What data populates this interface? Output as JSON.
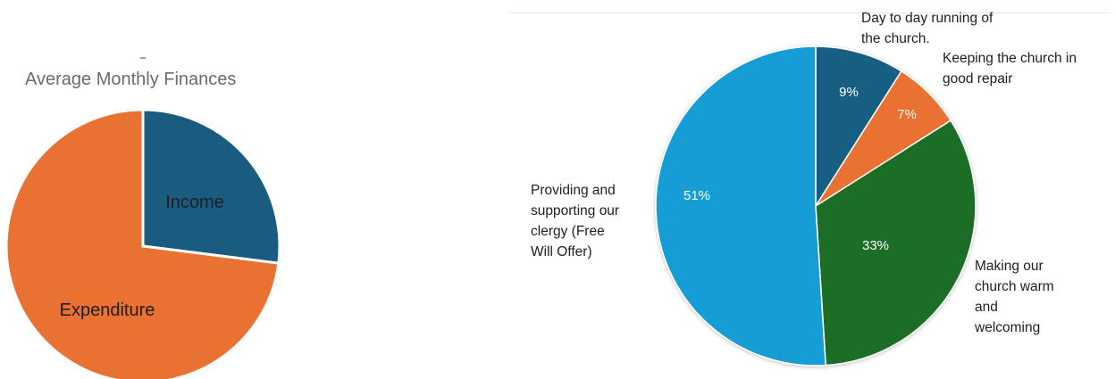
{
  "chart_data": [
    {
      "type": "pie",
      "title": "Average Monthly Finances",
      "categories": [
        "Income",
        "Expenditure"
      ],
      "values": [
        27,
        73
      ],
      "colors": [
        "#1a5c80",
        "#e97132"
      ],
      "labels_inside": true
    },
    {
      "type": "pie",
      "title": "",
      "categories": [
        "Day to day running of the church.",
        "Keeping the church in good repair",
        "Making our church warm and welcoming",
        "Providing and supporting our clergy (Free Will Offer)"
      ],
      "label_lines": [
        [
          "Day to day running of",
          "the church."
        ],
        [
          "Keeping the church in",
          "good repair"
        ],
        [
          "Making our",
          "church warm",
          "and",
          "welcoming"
        ],
        [
          "Providing and",
          "supporting our",
          "clergy (Free",
          "Will Offer)"
        ]
      ],
      "values": [
        9,
        7,
        33,
        51
      ],
      "data_labels": [
        "9%",
        "7%",
        "33%",
        "51%"
      ],
      "colors": [
        "#155e82",
        "#e97132",
        "#1e6e28",
        "#139dd5"
      ]
    }
  ]
}
